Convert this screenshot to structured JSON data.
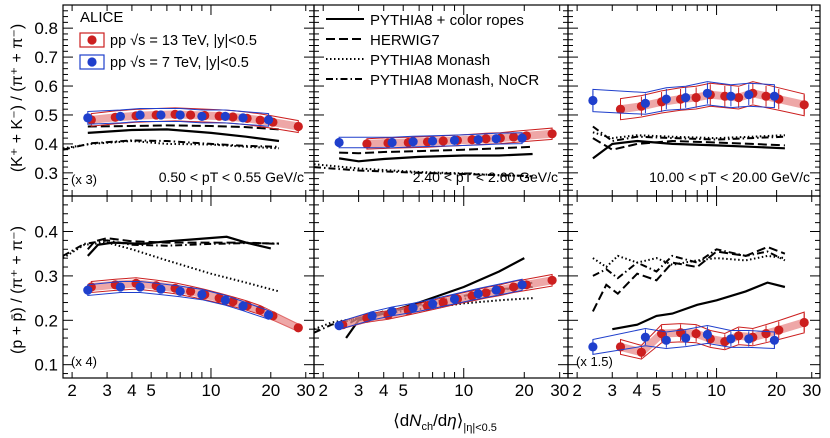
{
  "colors": {
    "alice_13": "#cc1f1f",
    "alice_13_band": "#e88a8a",
    "alice_7": "#1f3fcc",
    "model": "#000000"
  },
  "legend": {
    "experiment": "ALICE",
    "entries": [
      {
        "key": "13TeV",
        "label": "pp √s = 13 TeV, |y|<0.5"
      },
      {
        "key": "7TeV",
        "label": "pp √s = 7 TeV, |y|<0.5"
      }
    ],
    "models": [
      {
        "key": "ropes",
        "label": "PYTHIA8 + color ropes",
        "dash": "none"
      },
      {
        "key": "herwig",
        "label": "HERWIG7",
        "dash": "9,4"
      },
      {
        "key": "monash",
        "label": "PYTHIA8 Monash",
        "dash": "1.5,2.5"
      },
      {
        "key": "nocr",
        "label": "PYTHIA8 Monash, NoCR",
        "dash": "7,3,1.5,3"
      }
    ]
  },
  "chart_data": {
    "type": "scatter",
    "xlabel": "⟨dNch/dη⟩|η|<0.5",
    "xscale": "log",
    "xlim": [
      1.8,
      33
    ],
    "x_ticks": [
      "2",
      "3",
      "4",
      "5",
      "10",
      "20",
      "30"
    ],
    "rows": [
      {
        "ylabel": "(K⁺ + K⁻) / (π⁺ + π⁻)",
        "ylim": [
          0.22,
          0.88
        ],
        "y_ticks": [
          "0.3",
          "0.4",
          "0.5",
          "0.6",
          "0.7",
          "0.8"
        ]
      },
      {
        "ylabel": "(p + p̄) / (π⁺ + π⁻)",
        "ylim": [
          0.07,
          0.48
        ],
        "y_ticks": [
          "0.1",
          "0.2",
          "0.3",
          "0.4"
        ]
      }
    ],
    "panels": [
      {
        "row": 0,
        "col": 0,
        "label": "0.50 < pT < 0.55 GeV/c",
        "scale": "(x 3)",
        "series": [
          {
            "name": "pp 13 TeV",
            "x": [
              2.5,
              3.3,
              4.2,
              5.3,
              6.6,
              7.9,
              9.3,
              11.0,
              12.9,
              15.2,
              17.7,
              20.5,
              27.5
            ],
            "y": [
              0.483,
              0.492,
              0.497,
              0.5,
              0.502,
              0.5,
              0.498,
              0.496,
              0.493,
              0.488,
              0.482,
              0.475,
              0.46
            ]
          },
          {
            "name": "pp 7 TeV",
            "x": [
              2.4,
              3.5,
              4.4,
              5.6,
              7.0,
              9.0,
              11.8,
              14.5,
              19.5
            ],
            "y": [
              0.49,
              0.495,
              0.5,
              0.5,
              0.5,
              0.495,
              0.495,
              0.49,
              0.483
            ]
          }
        ],
        "models": [
          {
            "key": "ropes",
            "x": [
              2.4,
              4,
              6,
              10,
              15,
              22
            ],
            "y": [
              0.438,
              0.448,
              0.45,
              0.438,
              0.425,
              0.41
            ]
          },
          {
            "key": "herwig",
            "x": [
              2.4,
              4,
              6,
              10,
              15,
              22
            ],
            "y": [
              0.46,
              0.462,
              0.464,
              0.462,
              0.458,
              0.45
            ]
          },
          {
            "key": "monash",
            "x": [
              1.8,
              2.5,
              4,
              6,
              10,
              15,
              22
            ],
            "y": [
              0.385,
              0.4,
              0.41,
              0.4,
              0.398,
              0.39,
              0.385
            ]
          },
          {
            "key": "nocr",
            "x": [
              1.8,
              2.5,
              4,
              6,
              10,
              15,
              22
            ],
            "y": [
              0.38,
              0.402,
              0.412,
              0.41,
              0.4,
              0.393,
              0.39
            ]
          }
        ]
      },
      {
        "row": 0,
        "col": 1,
        "label": "2.40 < pT < 2.60 GeV/c",
        "scale": "",
        "series": [
          {
            "name": "pp 13 TeV",
            "x": [
              3.3,
              4.2,
              5.3,
              6.6,
              7.9,
              9.3,
              11.0,
              12.9,
              15.2,
              17.7,
              20.5,
              27.5
            ],
            "y": [
              0.4,
              0.403,
              0.405,
              0.407,
              0.41,
              0.412,
              0.415,
              0.418,
              0.42,
              0.424,
              0.428,
              0.435
            ]
          },
          {
            "name": "pp 7 TeV",
            "x": [
              2.4,
              4.4,
              5.6,
              7.0,
              9.0,
              11.8,
              14.5,
              19.5
            ],
            "y": [
              0.405,
              0.405,
              0.408,
              0.41,
              0.412,
              0.415,
              0.418,
              0.42
            ]
          }
        ],
        "models": [
          {
            "key": "ropes",
            "x": [
              2.4,
              3,
              4,
              6,
              10,
              15,
              22
            ],
            "y": [
              0.35,
              0.34,
              0.348,
              0.355,
              0.36,
              0.36,
              0.365
            ]
          },
          {
            "key": "herwig",
            "x": [
              2.4,
              3,
              4,
              6,
              10,
              15,
              22
            ],
            "y": [
              0.37,
              0.368,
              0.372,
              0.375,
              0.38,
              0.385,
              0.39
            ]
          },
          {
            "key": "monash",
            "x": [
              1.8,
              3,
              4,
              6,
              10,
              15,
              22
            ],
            "y": [
              0.33,
              0.315,
              0.31,
              0.303,
              0.298,
              0.292,
              0.288
            ]
          },
          {
            "key": "nocr",
            "x": [
              1.8,
              3,
              4,
              6,
              10,
              15,
              22
            ],
            "y": [
              0.32,
              0.308,
              0.305,
              0.3,
              0.296,
              0.292,
              0.289
            ]
          }
        ]
      },
      {
        "row": 0,
        "col": 2,
        "label": "10.00 < pT < 20.00 GeV/c",
        "scale": "",
        "series": [
          {
            "name": "pp 13 TeV",
            "x": [
              3.3,
              4.2,
              5.3,
              6.6,
              7.9,
              9.3,
              11.0,
              12.9,
              15.2,
              17.7,
              20.5,
              27.5
            ],
            "y": [
              0.52,
              0.53,
              0.545,
              0.555,
              0.56,
              0.57,
              0.565,
              0.56,
              0.575,
              0.565,
              0.555,
              0.535
            ]
          },
          {
            "name": "pp 7 TeV",
            "x": [
              2.4,
              4.4,
              5.6,
              7.0,
              9.0,
              11.8,
              14.5,
              19.5
            ],
            "y": [
              0.55,
              0.54,
              0.555,
              0.56,
              0.575,
              0.565,
              0.57,
              0.565
            ]
          }
        ],
        "models": [
          {
            "key": "ropes",
            "x": [
              2.4,
              3,
              4,
              6,
              10,
              15,
              22
            ],
            "y": [
              0.35,
              0.4,
              0.41,
              0.4,
              0.395,
              0.39,
              0.385
            ]
          },
          {
            "key": "herwig",
            "x": [
              2.4,
              3,
              4,
              6,
              10,
              15,
              22
            ],
            "y": [
              0.42,
              0.38,
              0.4,
              0.41,
              0.405,
              0.4,
              0.395
            ]
          },
          {
            "key": "monash",
            "x": [
              2.4,
              3,
              4,
              6,
              10,
              15,
              22
            ],
            "y": [
              0.44,
              0.42,
              0.43,
              0.425,
              0.42,
              0.425,
              0.43
            ]
          },
          {
            "key": "nocr",
            "x": [
              2.4,
              3,
              4,
              6,
              10,
              15,
              22
            ],
            "y": [
              0.46,
              0.41,
              0.425,
              0.42,
              0.415,
              0.42,
              0.425
            ]
          }
        ]
      },
      {
        "row": 1,
        "col": 0,
        "label": "",
        "scale": "(x 4)",
        "series": [
          {
            "name": "pp 13 TeV",
            "x": [
              2.5,
              3.3,
              4.2,
              5.3,
              6.6,
              7.9,
              9.3,
              11.0,
              12.9,
              15.2,
              17.7,
              20.5,
              27.5
            ],
            "y": [
              0.275,
              0.28,
              0.283,
              0.278,
              0.272,
              0.265,
              0.258,
              0.25,
              0.242,
              0.233,
              0.223,
              0.21,
              0.183
            ]
          },
          {
            "name": "pp 7 TeV",
            "x": [
              2.4,
              3.5,
              4.4,
              5.6,
              7.0,
              9.0,
              11.8,
              14.5,
              19.5
            ],
            "y": [
              0.268,
              0.275,
              0.275,
              0.27,
              0.265,
              0.258,
              0.245,
              0.232,
              0.212
            ]
          }
        ],
        "models": [
          {
            "key": "ropes",
            "x": [
              2.4,
              2.7,
              3.2,
              4.5,
              6,
              8,
              12,
              15,
              20
            ],
            "y": [
              0.345,
              0.37,
              0.375,
              0.372,
              0.378,
              0.382,
              0.388,
              0.375,
              0.362
            ]
          },
          {
            "key": "herwig",
            "x": [
              2.4,
              2.6,
              3,
              4,
              6,
              10,
              15,
              22
            ],
            "y": [
              0.36,
              0.378,
              0.385,
              0.378,
              0.375,
              0.375,
              0.375,
              0.372
            ]
          },
          {
            "key": "monash",
            "x": [
              1.8,
              2.3,
              3,
              4,
              6,
              10,
              15,
              22
            ],
            "y": [
              0.34,
              0.37,
              0.375,
              0.36,
              0.335,
              0.305,
              0.285,
              0.265
            ]
          },
          {
            "key": "nocr",
            "x": [
              1.8,
              2.3,
              3,
              4,
              6,
              10,
              15,
              22
            ],
            "y": [
              0.345,
              0.372,
              0.38,
              0.37,
              0.368,
              0.372,
              0.374,
              0.373
            ]
          }
        ]
      },
      {
        "row": 1,
        "col": 1,
        "label": "",
        "scale": "",
        "series": [
          {
            "name": "pp 13 TeV",
            "x": [
              2.5,
              3.3,
              4.2,
              5.3,
              6.6,
              7.9,
              9.3,
              11.0,
              12.9,
              15.2,
              17.7,
              20.5,
              27.5
            ],
            "y": [
              0.19,
              0.205,
              0.212,
              0.222,
              0.232,
              0.24,
              0.248,
              0.255,
              0.262,
              0.268,
              0.275,
              0.28,
              0.29
            ]
          },
          {
            "name": "pp 7 TeV",
            "x": [
              2.4,
              3.5,
              4.4,
              5.6,
              7.0,
              9.0,
              11.8,
              14.5,
              19.5
            ],
            "y": [
              0.188,
              0.21,
              0.22,
              0.228,
              0.237,
              0.248,
              0.26,
              0.268,
              0.28
            ]
          }
        ],
        "models": [
          {
            "key": "ropes",
            "x": [
              2.6,
              3,
              4,
              6,
              10,
              15,
              20
            ],
            "y": [
              0.16,
              0.2,
              0.215,
              0.24,
              0.275,
              0.31,
              0.34
            ]
          },
          {
            "key": "herwig",
            "x": [
              2.4,
              3,
              4,
              6,
              10,
              15,
              22
            ],
            "y": [
              0.18,
              0.205,
              0.22,
              0.235,
              0.255,
              0.27,
              0.275
            ]
          },
          {
            "key": "monash",
            "x": [
              1.8,
              2.2,
              3,
              4,
              6,
              10,
              15,
              22
            ],
            "y": [
              0.18,
              0.195,
              0.205,
              0.215,
              0.225,
              0.238,
              0.245,
              0.25
            ]
          },
          {
            "key": "nocr",
            "x": [
              1.8,
              2.2,
              3,
              4,
              6,
              10,
              15,
              22
            ],
            "y": [
              0.172,
              0.19,
              0.205,
              0.218,
              0.232,
              0.248,
              0.265,
              0.285
            ]
          }
        ]
      },
      {
        "row": 1,
        "col": 2,
        "label": "",
        "scale": "(x 1.5)",
        "series": [
          {
            "name": "pp 13 TeV",
            "x": [
              3.3,
              4.2,
              5.3,
              6.6,
              7.9,
              9.3,
              11.0,
              12.9,
              15.2,
              17.7,
              20.5,
              27.5
            ],
            "y": [
              0.14,
              0.128,
              0.17,
              0.172,
              0.17,
              0.158,
              0.152,
              0.165,
              0.162,
              0.17,
              0.178,
              0.195
            ]
          },
          {
            "name": "pp 7 TeV",
            "x": [
              2.4,
              4.4,
              5.6,
              7.0,
              9.0,
              11.8,
              14.5,
              19.5
            ],
            "y": [
              0.14,
              0.162,
              0.155,
              0.16,
              0.168,
              0.158,
              0.158,
              0.155
            ]
          }
        ],
        "models": [
          {
            "key": "ropes",
            "x": [
              3,
              4,
              5,
              6,
              8,
              10,
              14,
              18,
              22
            ],
            "y": [
              0.18,
              0.19,
              0.21,
              0.215,
              0.235,
              0.245,
              0.265,
              0.285,
              0.275
            ]
          },
          {
            "key": "herwig",
            "x": [
              2.4,
              2.8,
              3.2,
              4,
              5,
              6,
              8,
              10,
              14,
              18,
              22
            ],
            "y": [
              0.22,
              0.28,
              0.26,
              0.305,
              0.29,
              0.33,
              0.32,
              0.355,
              0.345,
              0.365,
              0.35
            ]
          },
          {
            "key": "monash",
            "x": [
              2.4,
              2.8,
              3.2,
              4,
              5,
              6,
              8,
              10,
              14,
              18,
              22
            ],
            "y": [
              0.34,
              0.32,
              0.345,
              0.33,
              0.34,
              0.325,
              0.335,
              0.34,
              0.335,
              0.345,
              0.34
            ]
          },
          {
            "key": "nocr",
            "x": [
              2.4,
              2.8,
              3.2,
              4,
              5,
              6,
              8,
              10,
              14,
              18,
              22
            ],
            "y": [
              0.3,
              0.315,
              0.295,
              0.33,
              0.31,
              0.345,
              0.33,
              0.36,
              0.345,
              0.355,
              0.335
            ]
          }
        ]
      }
    ]
  }
}
